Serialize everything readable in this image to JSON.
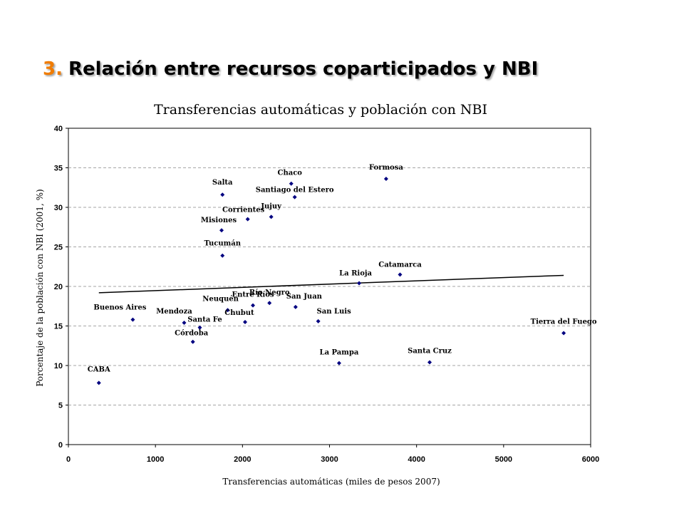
{
  "slide": {
    "number": "3.",
    "title": "Relación entre recursos coparticipados y NBI"
  },
  "chart_data": {
    "type": "scatter",
    "title": "Transferencias automáticas y población con NBI",
    "xlabel": "Transferencias automáticas (miles de pesos 2007)",
    "ylabel": "Porcentaje de la población con NBI (2001, %)",
    "xlim": [
      0,
      6000
    ],
    "ylim": [
      0,
      40
    ],
    "xticks": [
      0,
      1000,
      2000,
      3000,
      4000,
      5000,
      6000
    ],
    "yticks": [
      0,
      5,
      10,
      15,
      20,
      25,
      30,
      35,
      40
    ],
    "grid": "horizontal-dashed",
    "marker_color": "#000080",
    "points": [
      {
        "label": "CABA",
        "x": 350,
        "y": 7.8
      },
      {
        "label": "Buenos Aires",
        "x": 740,
        "y": 15.8
      },
      {
        "label": "Mendoza",
        "x": 1330,
        "y": 15.4
      },
      {
        "label": "Córdoba",
        "x": 1430,
        "y": 13.0
      },
      {
        "label": "Santa Fe",
        "x": 1510,
        "y": 14.8
      },
      {
        "label": "Salta",
        "x": 1770,
        "y": 31.6
      },
      {
        "label": "Misiones",
        "x": 1760,
        "y": 27.1
      },
      {
        "label": "Tucumán",
        "x": 1770,
        "y": 23.9
      },
      {
        "label": "Neuquén",
        "x": 1830,
        "y": 17.0
      },
      {
        "label": "Corrientes",
        "x": 2060,
        "y": 28.5
      },
      {
        "label": "Chubut",
        "x": 2030,
        "y": 15.5
      },
      {
        "label": "Entre Ríos",
        "x": 2120,
        "y": 17.6
      },
      {
        "label": "Jujuy",
        "x": 2330,
        "y": 28.8
      },
      {
        "label": "Río Negro",
        "x": 2310,
        "y": 17.9
      },
      {
        "label": "Chaco",
        "x": 2560,
        "y": 33.0
      },
      {
        "label": "Santiago del Estero",
        "x": 2600,
        "y": 31.3
      },
      {
        "label": "San Juan",
        "x": 2610,
        "y": 17.4
      },
      {
        "label": "San Luis",
        "x": 2870,
        "y": 15.6
      },
      {
        "label": "La Pampa",
        "x": 3110,
        "y": 10.3
      },
      {
        "label": "La Rioja",
        "x": 3340,
        "y": 20.4
      },
      {
        "label": "Formosa",
        "x": 3650,
        "y": 33.6
      },
      {
        "label": "Catamarca",
        "x": 3810,
        "y": 21.5
      },
      {
        "label": "Santa Cruz",
        "x": 4150,
        "y": 10.4
      },
      {
        "label": "Tierra del Fuego",
        "x": 5690,
        "y": 14.1
      }
    ],
    "trendline": {
      "x": [
        350,
        5690
      ],
      "y": [
        19.2,
        21.4
      ]
    }
  }
}
